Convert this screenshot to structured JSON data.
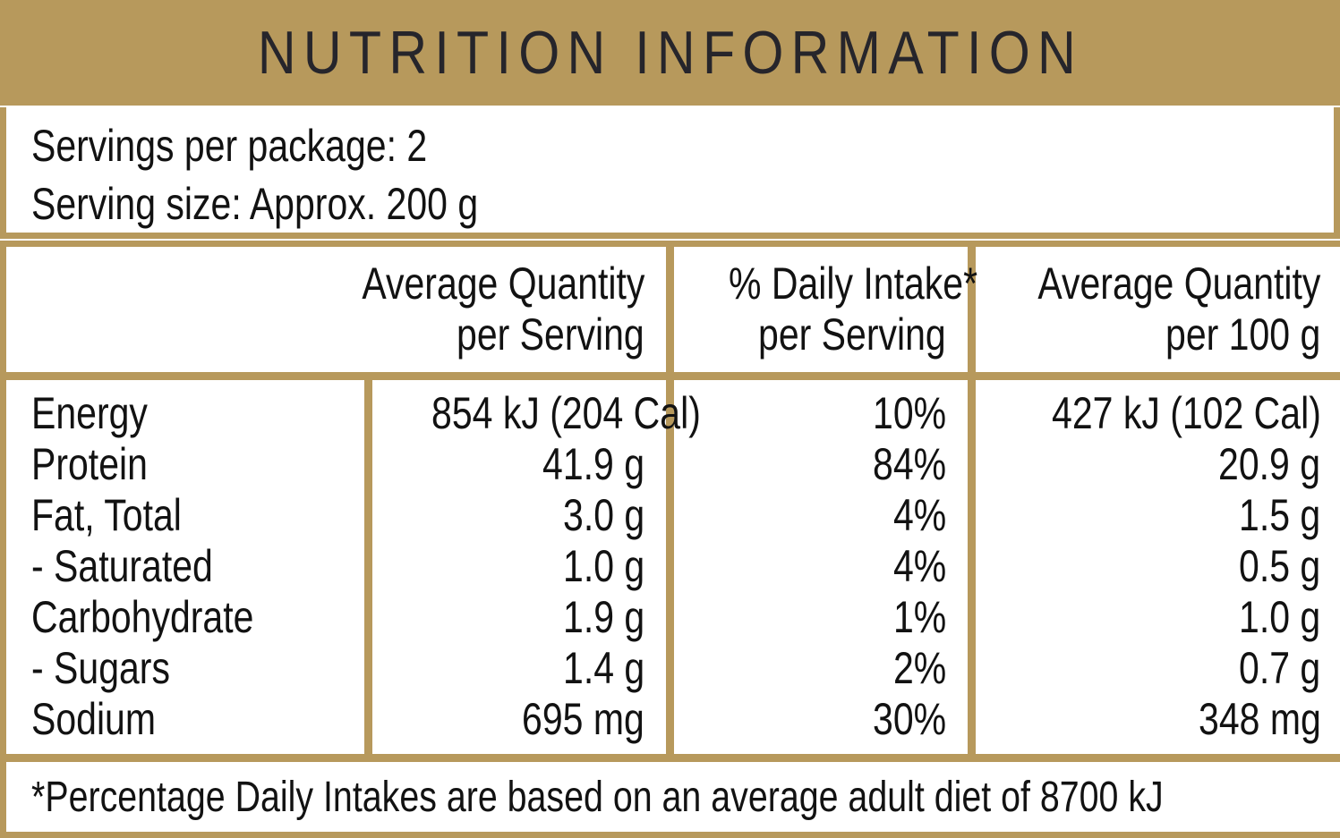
{
  "panel": {
    "title": "NUTRITION INFORMATION",
    "servings": {
      "per_package": "Servings per package: 2",
      "serving_size": "Serving size: Approx. 200 g"
    },
    "header": {
      "col_serving_line1": "Average Quantity",
      "col_serving_line2": "per Serving",
      "col_daily_intake_line1": "% Daily Intake*",
      "col_daily_intake_line2": "per Serving",
      "col_100g_line1": "Average Quantity",
      "col_100g_line2": "per 100 g"
    },
    "rows": [
      {
        "label": "Energy",
        "per_serving": "854 kJ (204 Cal)",
        "daily_intake": "10%",
        "per_100g": "427 kJ (102 Cal)"
      },
      {
        "label": "Protein",
        "per_serving": "41.9 g",
        "daily_intake": "84%",
        "per_100g": "20.9 g"
      },
      {
        "label": "Fat, Total",
        "per_serving": "3.0 g",
        "daily_intake": "4%",
        "per_100g": "1.5 g"
      },
      {
        "label": "- Saturated",
        "per_serving": "1.0 g",
        "daily_intake": "4%",
        "per_100g": "0.5 g"
      },
      {
        "label": "Carbohydrate",
        "per_serving": "1.9 g",
        "daily_intake": "1%",
        "per_100g": "1.0 g"
      },
      {
        "label": "- Sugars",
        "per_serving": "1.4 g",
        "daily_intake": "2%",
        "per_100g": "0.7 g"
      },
      {
        "label": "Sodium",
        "per_serving": "695 mg",
        "daily_intake": "30%",
        "per_100g": "348 mg"
      }
    ],
    "footnote": "*Percentage Daily Intakes are based on an average adult diet of 8700 kJ",
    "colors": {
      "gold": "#B7995C",
      "text": "#121212",
      "title_text": "#26252B",
      "bg": "#FFFFFF"
    }
  }
}
